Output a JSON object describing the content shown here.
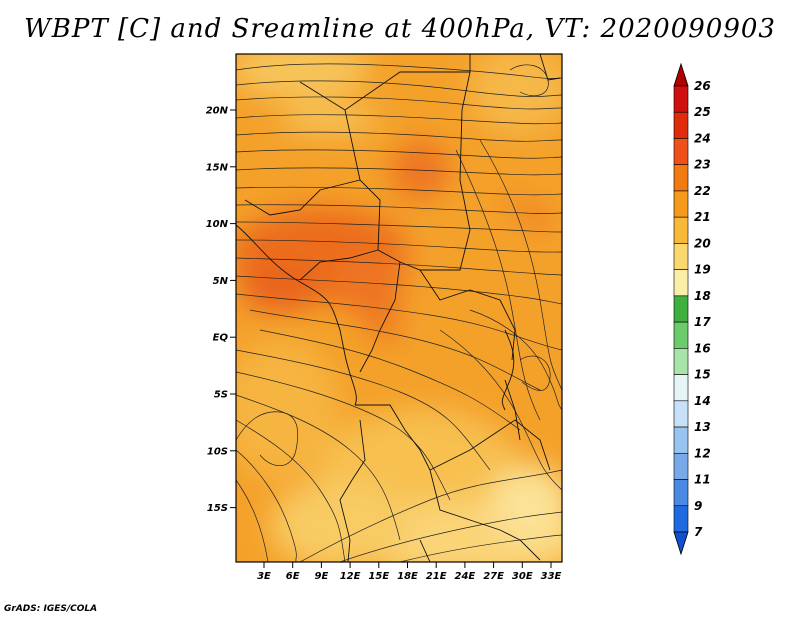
{
  "title": "WBPT [C] and Sreamline at 400hPa, VT: 2020090903",
  "footer": "GrADS: IGES/COLA",
  "map": {
    "lat_labels": [
      "20N",
      "15N",
      "10N",
      "5N",
      "EQ",
      "5S",
      "10S",
      "15S"
    ],
    "lon_labels": [
      "3E",
      "6E",
      "9E",
      "12E",
      "15E",
      "18E",
      "21E",
      "24E",
      "27E",
      "30E",
      "33E"
    ]
  },
  "colorbar": {
    "labels": [
      "26",
      "25",
      "24",
      "23",
      "22",
      "21",
      "20",
      "19",
      "18",
      "17",
      "16",
      "15",
      "14",
      "13",
      "12",
      "11",
      "9",
      "7"
    ],
    "colors": [
      "#b00000",
      "#d01010",
      "#e02c0c",
      "#f0501a",
      "#f27a12",
      "#f49a1a",
      "#f8b83a",
      "#fad870",
      "#fbeea8",
      "#3fb03f",
      "#6ccc6c",
      "#a8e4a8",
      "#e6f6f6",
      "#c8e0f8",
      "#98c4f0",
      "#78aaea",
      "#4a8ae2",
      "#1f6ae0",
      "#1050d0"
    ]
  }
}
